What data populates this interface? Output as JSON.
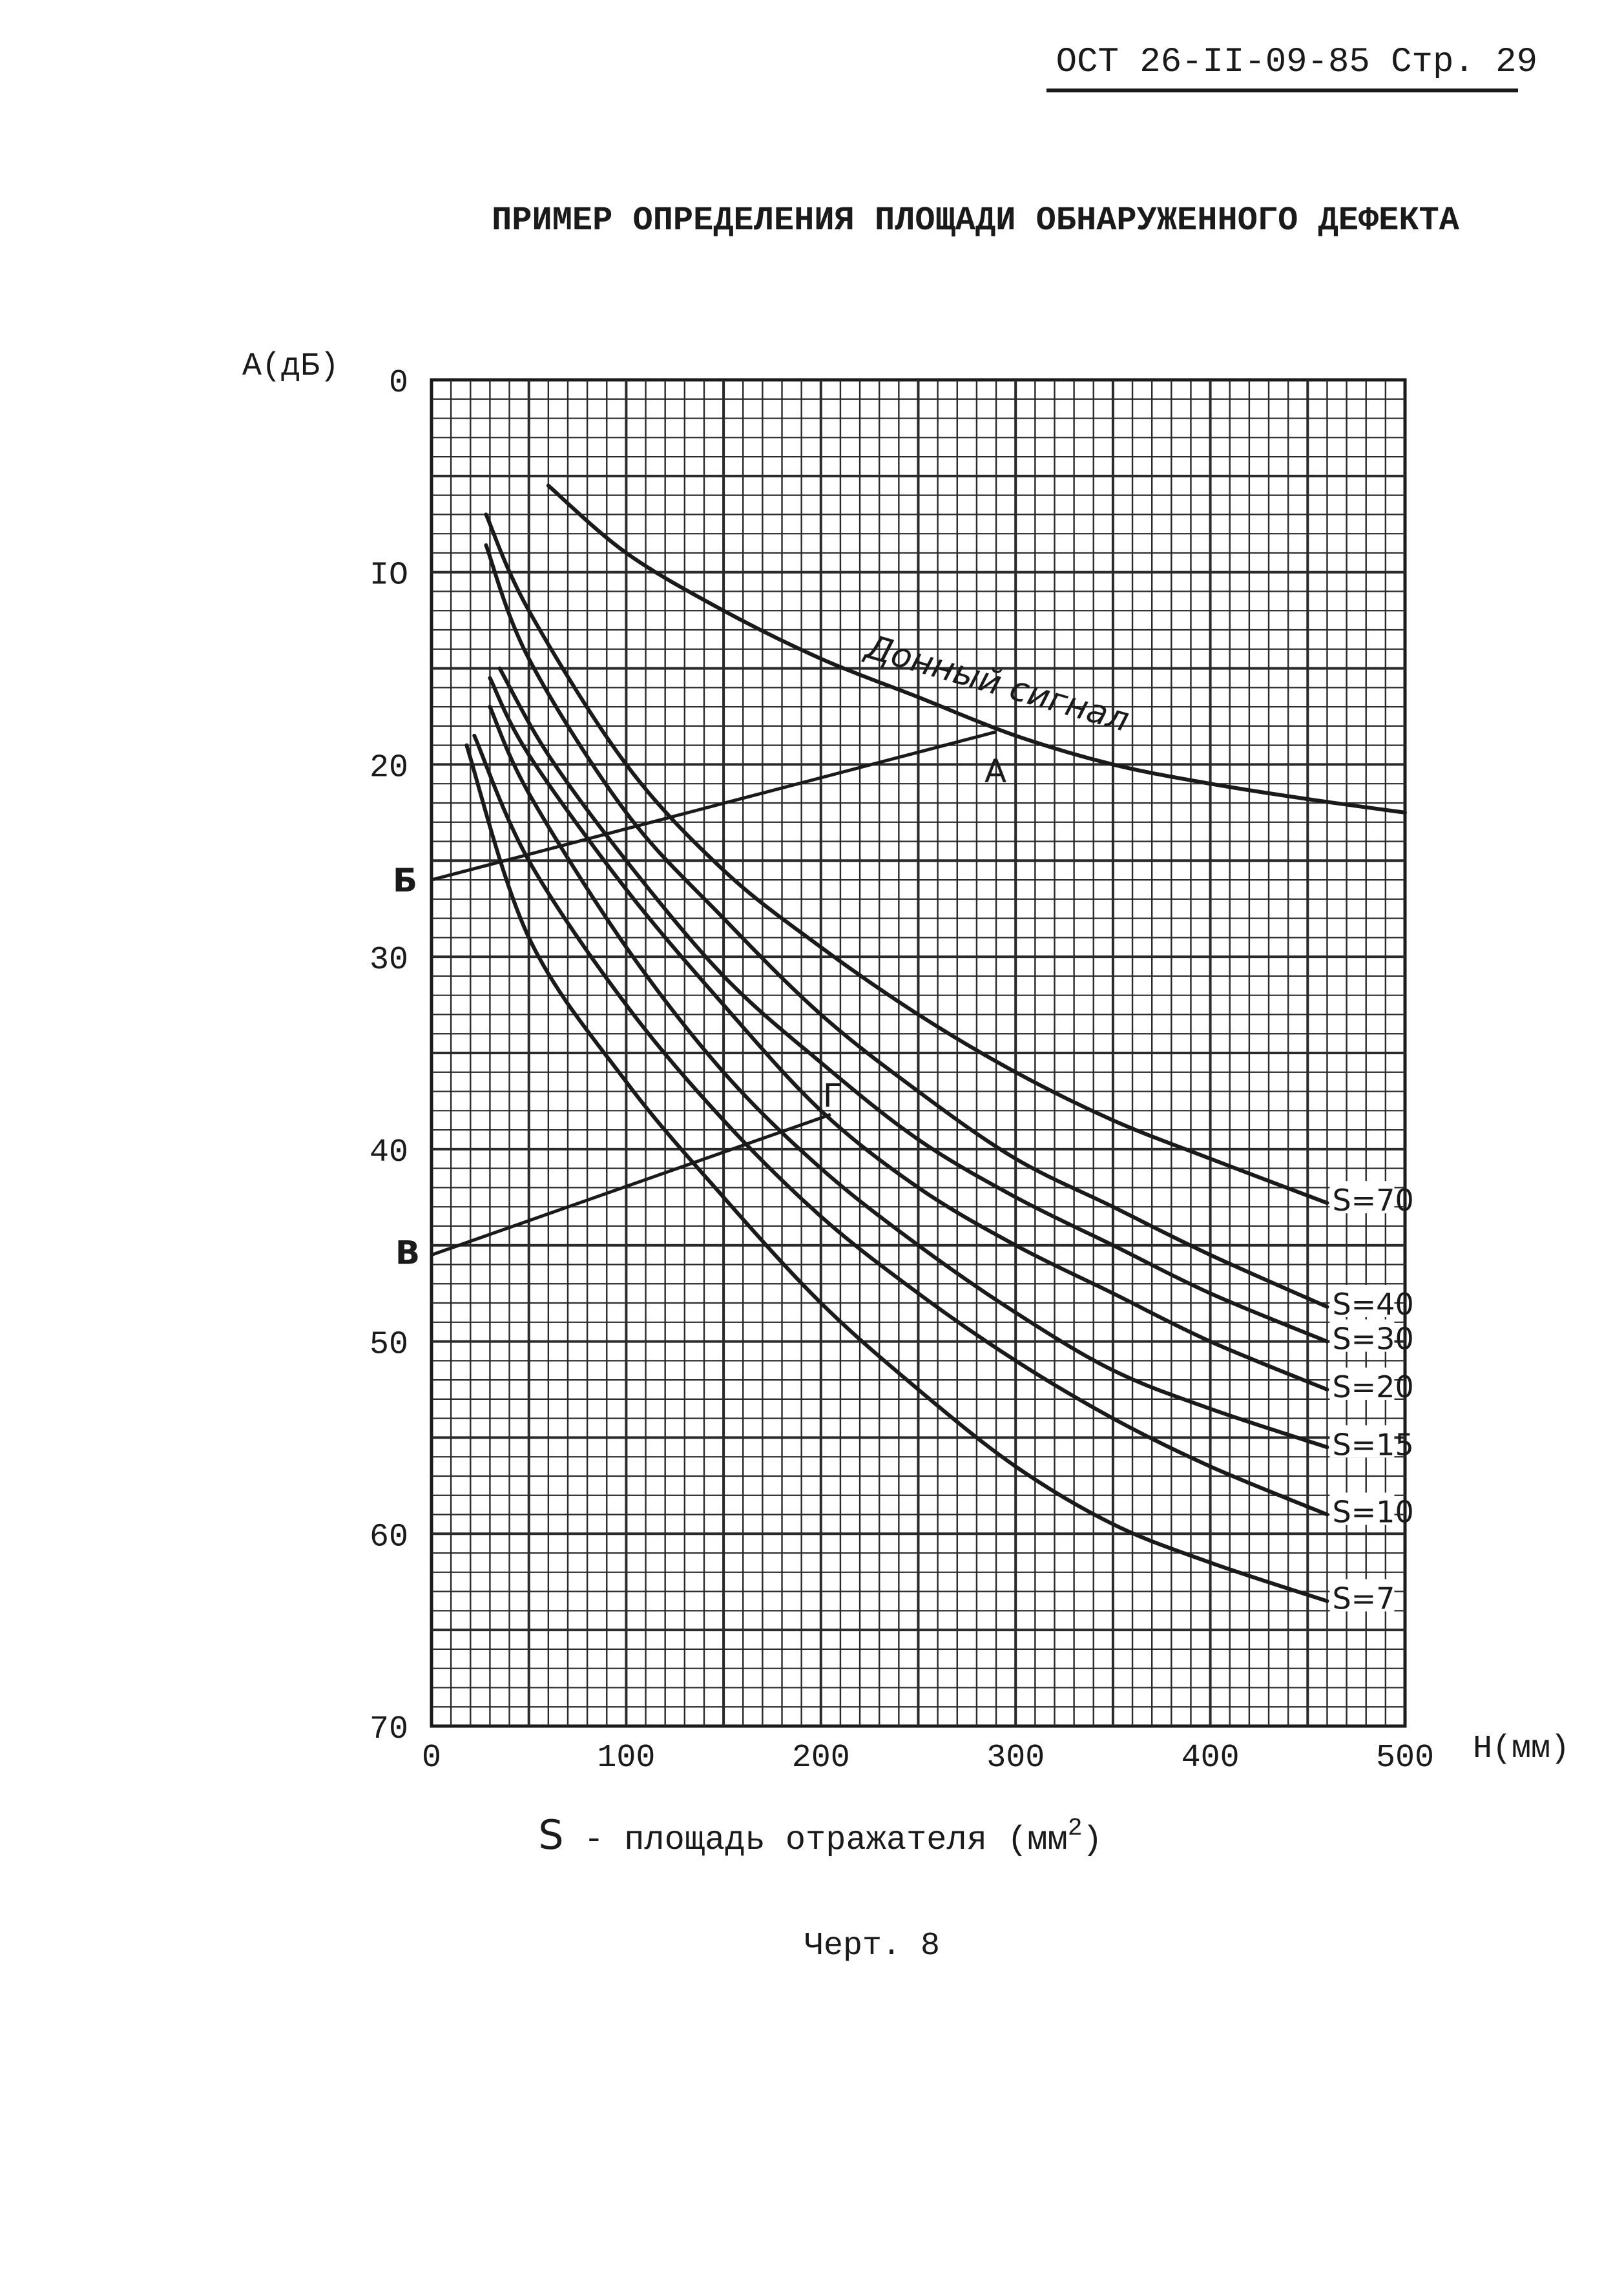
{
  "header": {
    "standard": "ОСТ 26-II-09-85 Стр. 29"
  },
  "title": "ПРИМЕР ОПРЕДЕЛЕНИЯ ПЛОЩАДИ ОБНАРУЖЕННОГО ДЕФЕКТА",
  "caption": {
    "legend_prefix": "S",
    "legend_text": " - площадь отражателя (мм",
    "legend_sup": "2",
    "legend_close": ")",
    "figure": "Черт. 8"
  },
  "colors": {
    "ink": "#1a1a1a",
    "grid": "#2a2a2a",
    "background": "#ffffff"
  },
  "chart_data": {
    "type": "line",
    "ylabel": "А(дБ)",
    "xlabel": "Н(мм)",
    "xlim": [
      0,
      500
    ],
    "ylim": [
      0,
      70
    ],
    "y_inverted": true,
    "grid": true,
    "x_ticks": [
      "0",
      "100",
      "200",
      "300",
      "400",
      "500"
    ],
    "x_tick_values": [
      0,
      100,
      200,
      300,
      400,
      500
    ],
    "y_ticks": [
      "0",
      "IO",
      "20",
      "30",
      "40",
      "50",
      "60",
      "70"
    ],
    "y_tick_values": [
      0,
      10,
      20,
      30,
      40,
      50,
      60,
      70
    ],
    "series": [
      {
        "name": "S=70",
        "x": [
          28,
          50,
          100,
          150,
          200,
          250,
          300,
          350,
          400,
          460
        ],
        "y": [
          7,
          12,
          20,
          25.5,
          29.5,
          33,
          36,
          38.5,
          40.5,
          42.8
        ]
      },
      {
        "name": "S=40",
        "x": [
          28,
          50,
          100,
          150,
          200,
          250,
          300,
          350,
          400,
          460
        ],
        "y": [
          8.6,
          14.5,
          22.5,
          28,
          33,
          37,
          40.5,
          43,
          45.5,
          48.2
        ]
      },
      {
        "name": "S=30",
        "x": [
          35,
          60,
          100,
          150,
          200,
          250,
          300,
          350,
          400,
          460
        ],
        "y": [
          15,
          19.5,
          25,
          31,
          35.5,
          39.5,
          42.5,
          45,
          47.5,
          50
        ]
      },
      {
        "name": "S=20",
        "x": [
          30,
          50,
          100,
          150,
          200,
          250,
          300,
          350,
          400,
          460
        ],
        "y": [
          15.5,
          19.5,
          26.5,
          32.5,
          38,
          42,
          45,
          47.5,
          50,
          52.5
        ]
      },
      {
        "name": "S=15",
        "x": [
          30,
          50,
          100,
          150,
          200,
          250,
          300,
          350,
          400,
          460
        ],
        "y": [
          17,
          21.5,
          29.5,
          36,
          41,
          45,
          48.5,
          51.5,
          53.5,
          55.5
        ]
      },
      {
        "name": "S=10",
        "x": [
          22,
          50,
          100,
          150,
          200,
          250,
          300,
          350,
          400,
          460
        ],
        "y": [
          18.5,
          25,
          32.5,
          38.5,
          43.5,
          47.5,
          51,
          54,
          56.5,
          59
        ]
      },
      {
        "name": "S=7",
        "x": [
          18,
          50,
          100,
          150,
          200,
          250,
          300,
          350,
          400,
          460
        ],
        "y": [
          19,
          29,
          36.5,
          42.5,
          48,
          52.5,
          56.5,
          59.5,
          61.5,
          63.5
        ]
      },
      {
        "name": "Донный сигнал",
        "x": [
          60,
          100,
          150,
          200,
          250,
          300,
          350,
          400,
          450,
          500
        ],
        "y": [
          5.5,
          9,
          12,
          14.5,
          16.5,
          18.5,
          20,
          21,
          21.8,
          22.5
        ]
      }
    ],
    "helper_lines": [
      {
        "from_label": "Б",
        "to_label": "А",
        "x": [
          0,
          290
        ],
        "y": [
          26,
          18.3
        ]
      },
      {
        "from_label": "В",
        "to_label": "Г",
        "x": [
          0,
          205
        ],
        "y": [
          45.5,
          38.2
        ]
      }
    ],
    "annotations": {
      "A": "А",
      "B": "Б",
      "V": "В",
      "G": "Г",
      "bottom_signal": "Донный сигнал"
    }
  }
}
